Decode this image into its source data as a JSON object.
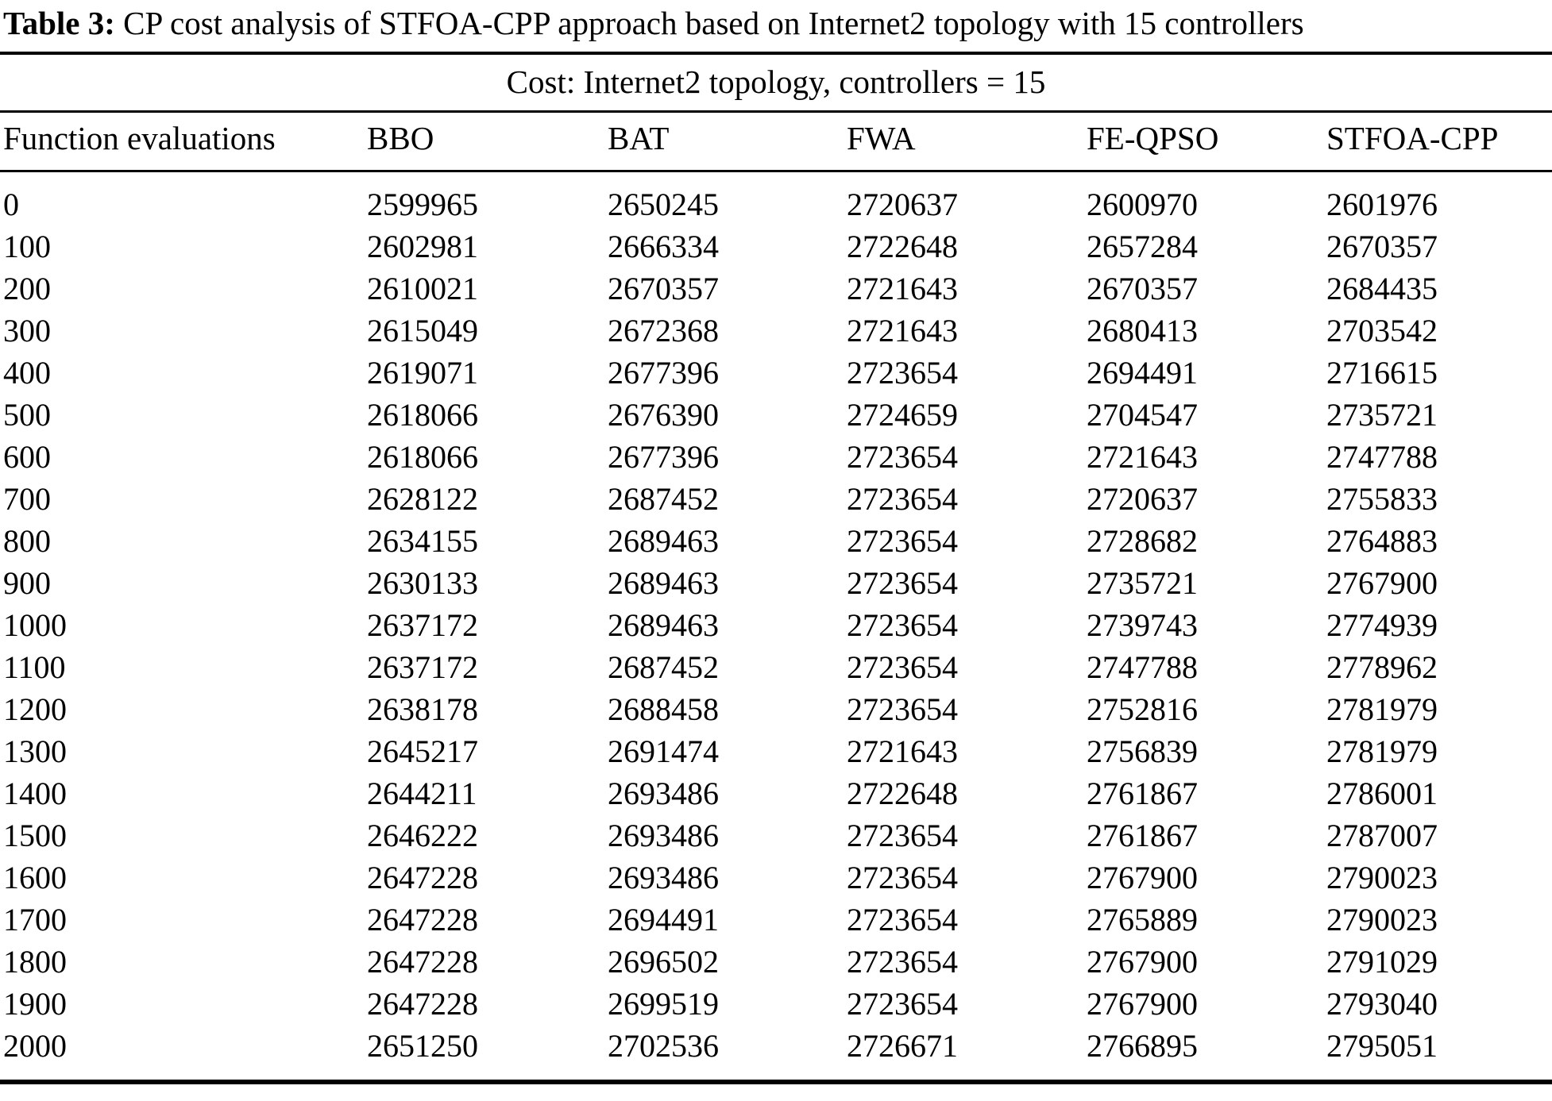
{
  "caption": {
    "label": "Table 3:",
    "text": " CP cost analysis of STFOA-CPP approach based on Internet2 topology with 15 controllers"
  },
  "table": {
    "span_header": "Cost: Internet2 topology, controllers = 15",
    "columns": [
      "Function evaluations",
      "BBO",
      "BAT",
      "FWA",
      "FE-QPSO",
      "STFOA-CPP"
    ],
    "rows": [
      [
        "0",
        "2599965",
        "2650245",
        "2720637",
        "2600970",
        "2601976"
      ],
      [
        "100",
        "2602981",
        "2666334",
        "2722648",
        "2657284",
        "2670357"
      ],
      [
        "200",
        "2610021",
        "2670357",
        "2721643",
        "2670357",
        "2684435"
      ],
      [
        "300",
        "2615049",
        "2672368",
        "2721643",
        "2680413",
        "2703542"
      ],
      [
        "400",
        "2619071",
        "2677396",
        "2723654",
        "2694491",
        "2716615"
      ],
      [
        "500",
        "2618066",
        "2676390",
        "2724659",
        "2704547",
        "2735721"
      ],
      [
        "600",
        "2618066",
        "2677396",
        "2723654",
        "2721643",
        "2747788"
      ],
      [
        "700",
        "2628122",
        "2687452",
        "2723654",
        "2720637",
        "2755833"
      ],
      [
        "800",
        "2634155",
        "2689463",
        "2723654",
        "2728682",
        "2764883"
      ],
      [
        "900",
        "2630133",
        "2689463",
        "2723654",
        "2735721",
        "2767900"
      ],
      [
        "1000",
        "2637172",
        "2689463",
        "2723654",
        "2739743",
        "2774939"
      ],
      [
        "1100",
        "2637172",
        "2687452",
        "2723654",
        "2747788",
        "2778962"
      ],
      [
        "1200",
        "2638178",
        "2688458",
        "2723654",
        "2752816",
        "2781979"
      ],
      [
        "1300",
        "2645217",
        "2691474",
        "2721643",
        "2756839",
        "2781979"
      ],
      [
        "1400",
        "2644211",
        "2693486",
        "2722648",
        "2761867",
        "2786001"
      ],
      [
        "1500",
        "2646222",
        "2693486",
        "2723654",
        "2761867",
        "2787007"
      ],
      [
        "1600",
        "2647228",
        "2693486",
        "2723654",
        "2767900",
        "2790023"
      ],
      [
        "1700",
        "2647228",
        "2694491",
        "2723654",
        "2765889",
        "2790023"
      ],
      [
        "1800",
        "2647228",
        "2696502",
        "2723654",
        "2767900",
        "2791029"
      ],
      [
        "1900",
        "2647228",
        "2699519",
        "2723654",
        "2767900",
        "2793040"
      ],
      [
        "2000",
        "2651250",
        "2702536",
        "2726671",
        "2766895",
        "2795051"
      ]
    ]
  }
}
